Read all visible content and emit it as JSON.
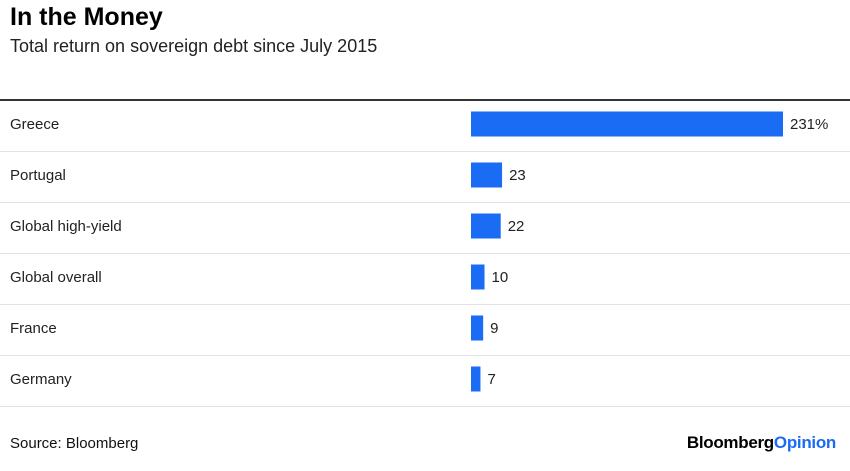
{
  "title": "In the Money",
  "subtitle": "Total return on sovereign debt since July 2015",
  "source": "Source: Bloomberg",
  "brand": {
    "name_part1": "Bloomberg",
    "name_part2": "Opinion",
    "accent_color": "#1a6cf5"
  },
  "colors": {
    "bar": "#1a6cf5",
    "row_divider": "#e2e2e2",
    "top_rule": "#333333"
  },
  "chart_data": {
    "type": "bar",
    "orientation": "horizontal",
    "title": "In the Money",
    "subtitle": "Total return on sovereign debt since July 2015",
    "categories": [
      "Greece",
      "Portugal",
      "Global high-yield",
      "Global overall",
      "France",
      "Germany"
    ],
    "values": [
      231,
      23,
      22,
      10,
      9,
      7
    ],
    "value_labels": [
      "231%",
      "23",
      "22",
      "10",
      "9",
      "7"
    ],
    "unit": "%",
    "xlabel": "",
    "ylabel": "",
    "xlim": [
      0,
      231
    ],
    "grid": false,
    "legend": "none"
  }
}
